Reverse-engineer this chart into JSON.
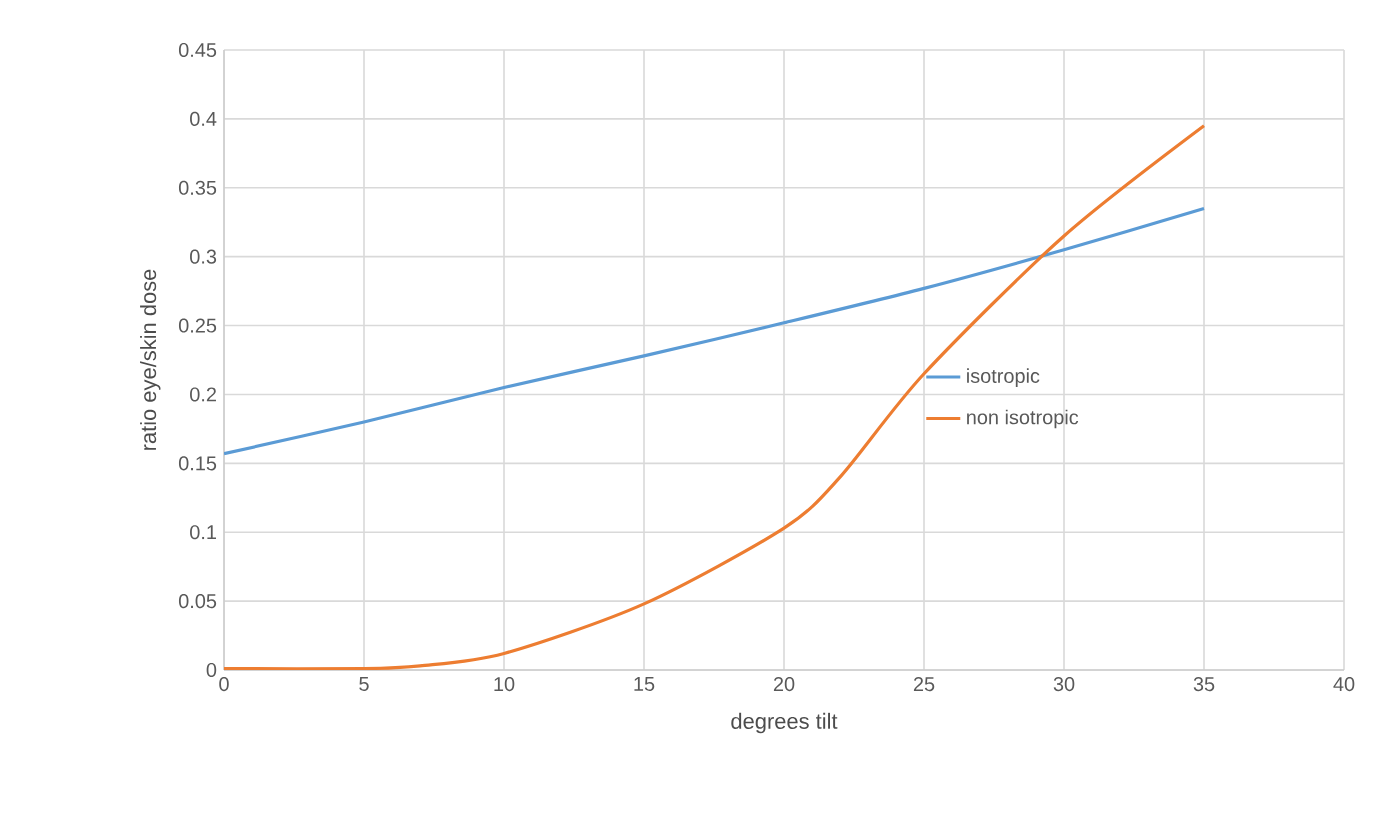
{
  "chart_data": {
    "type": "line",
    "xlabel": "degrees tilt",
    "ylabel": "ratio eye/skin dose",
    "x": [
      0,
      5,
      10,
      15,
      20,
      25,
      30,
      35
    ],
    "series": [
      {
        "name": "isotropic",
        "color": "#5b9bd5",
        "values": [
          0.157,
          0.18,
          0.205,
          0.228,
          0.252,
          0.277,
          0.305,
          0.335
        ]
      },
      {
        "name": "non isotropic",
        "color": "#ed7d31",
        "x": [
          0,
          5,
          7,
          10,
          15,
          20,
          22,
          25,
          30,
          35
        ],
        "values": [
          0.001,
          0.001,
          0.003,
          0.012,
          0.048,
          0.103,
          0.14,
          0.215,
          0.315,
          0.395
        ]
      }
    ],
    "xlim": [
      0,
      40
    ],
    "ylim": [
      0,
      0.45
    ],
    "xticks": [
      0,
      5,
      10,
      15,
      20,
      25,
      30,
      35,
      40
    ],
    "yticks": [
      0,
      0.05,
      0.1,
      0.15,
      0.2,
      0.25,
      0.3,
      0.35,
      0.4,
      0.45
    ],
    "grid": true,
    "legend": "center right",
    "marker": "none",
    "line_style": "solid"
  }
}
